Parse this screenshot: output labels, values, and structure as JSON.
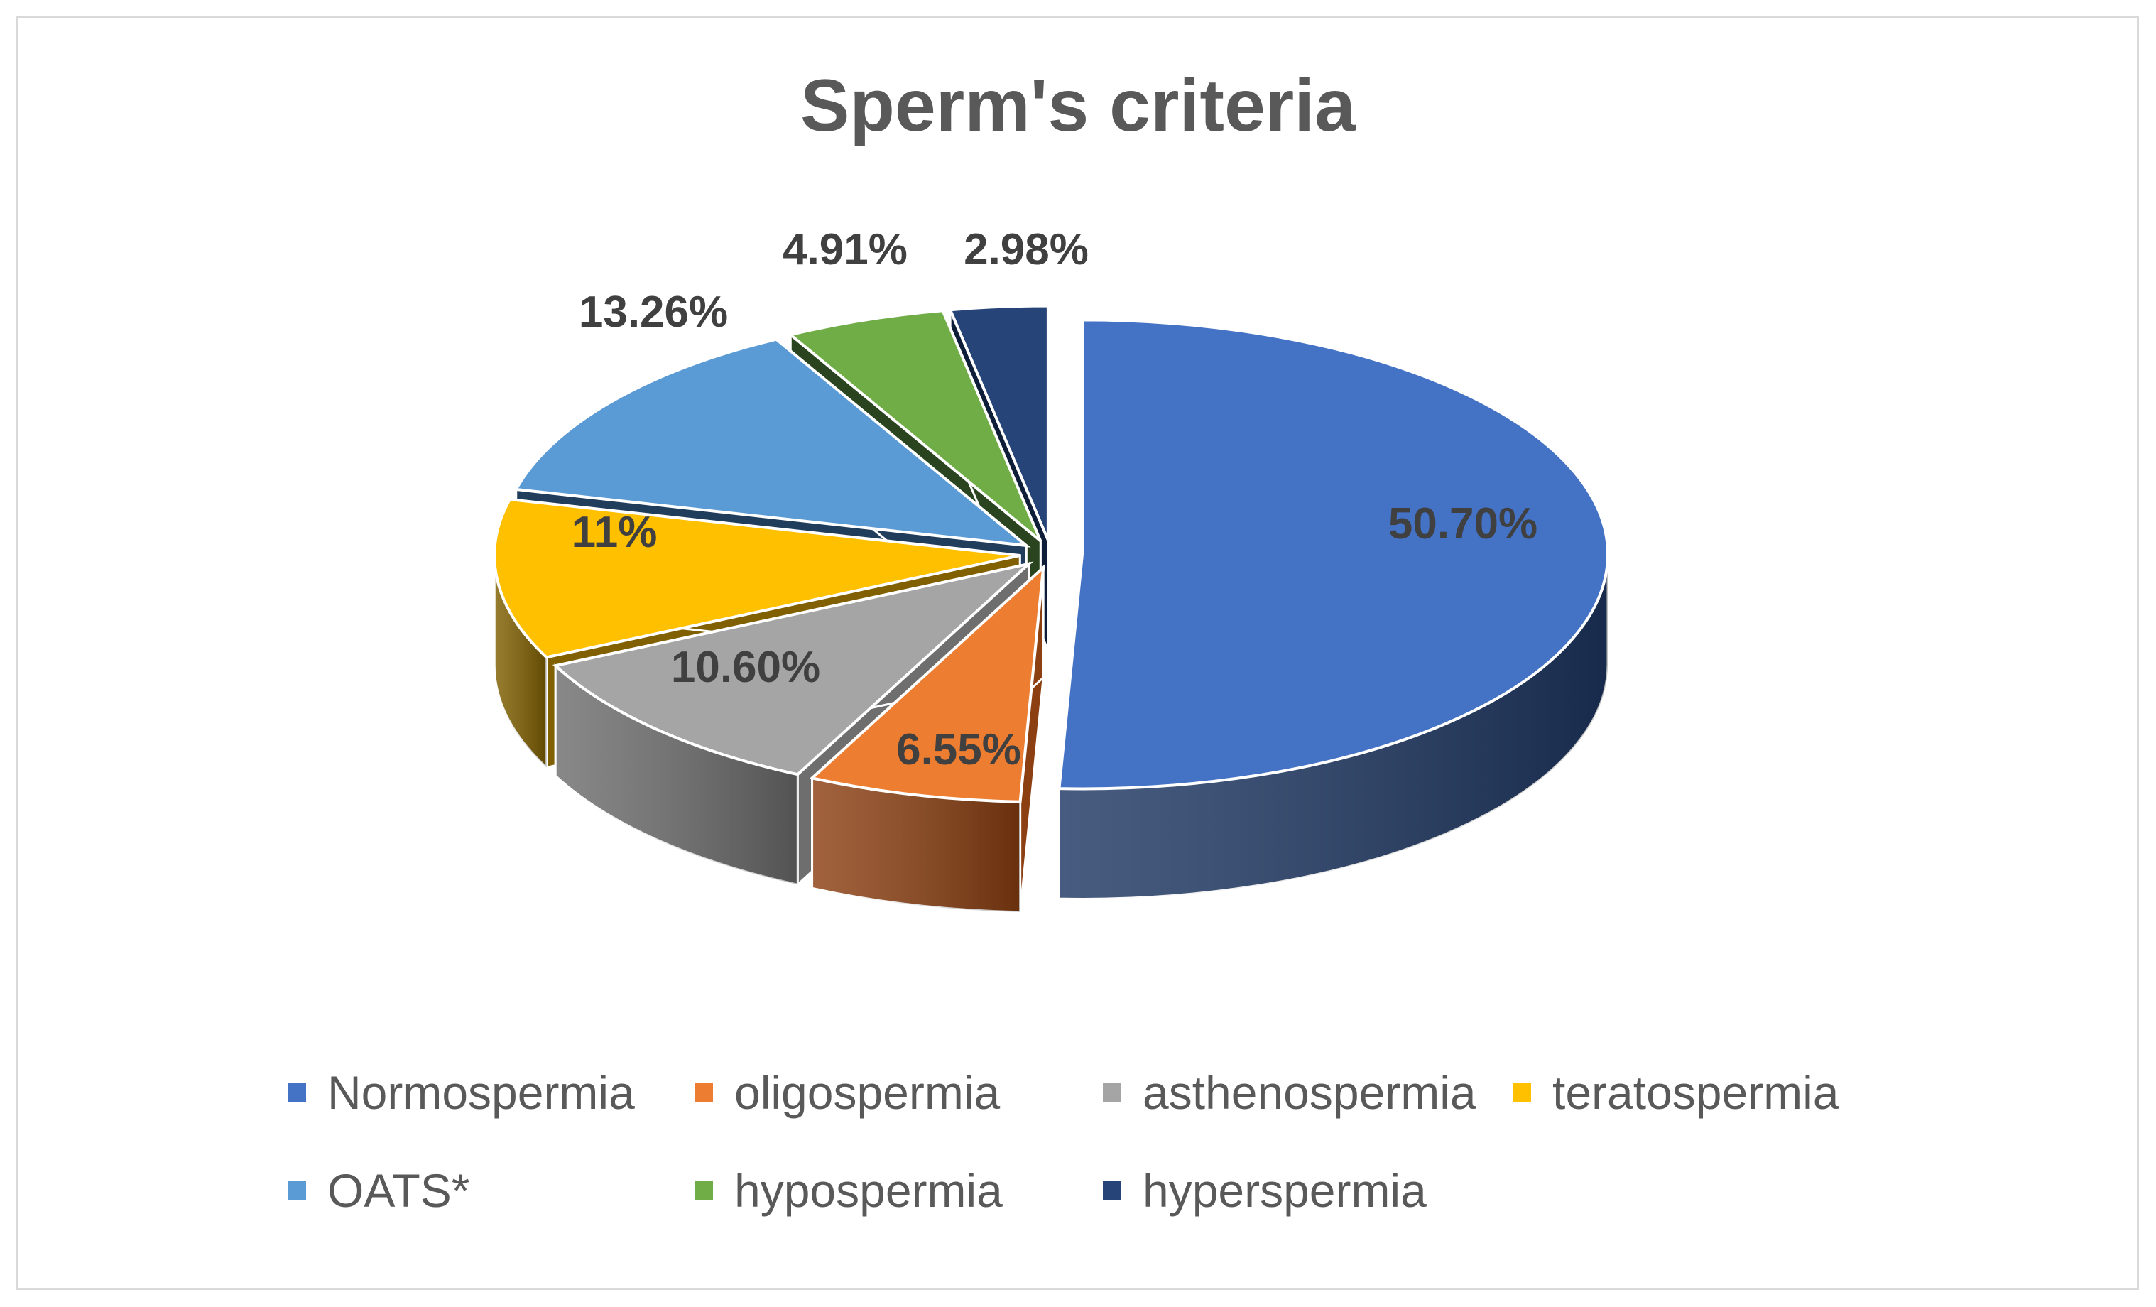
{
  "chart_data": {
    "type": "pie",
    "title": "Sperm's criteria",
    "style": "3d-exploded",
    "legend_position": "bottom",
    "series": [
      {
        "name": "Normospermia",
        "value": 50.7,
        "label": "50.70%",
        "color": "#4472C4",
        "dark": "#1F3864"
      },
      {
        "name": "oligospermia",
        "value": 6.55,
        "label": "6.55%",
        "color": "#ED7D31",
        "dark": "#8C4012"
      },
      {
        "name": "asthenospermia",
        "value": 10.6,
        "label": "10.60%",
        "color": "#A5A5A5",
        "dark": "#6E6E6E"
      },
      {
        "name": "teratospermia",
        "value": 11,
        "label": "11%",
        "color": "#FFC000",
        "dark": "#806000"
      },
      {
        "name": "OATS*",
        "value": 13.26,
        "label": "13.26%",
        "color": "#5B9BD5",
        "dark": "#203D5C"
      },
      {
        "name": "hypospermia",
        "value": 4.91,
        "label": "4.91%",
        "color": "#70AD47",
        "dark": "#2A4420"
      },
      {
        "name": "hyperspermia",
        "value": 2.98,
        "label": "2.98%",
        "color": "#264478",
        "dark": "#0F1E38"
      }
    ]
  }
}
